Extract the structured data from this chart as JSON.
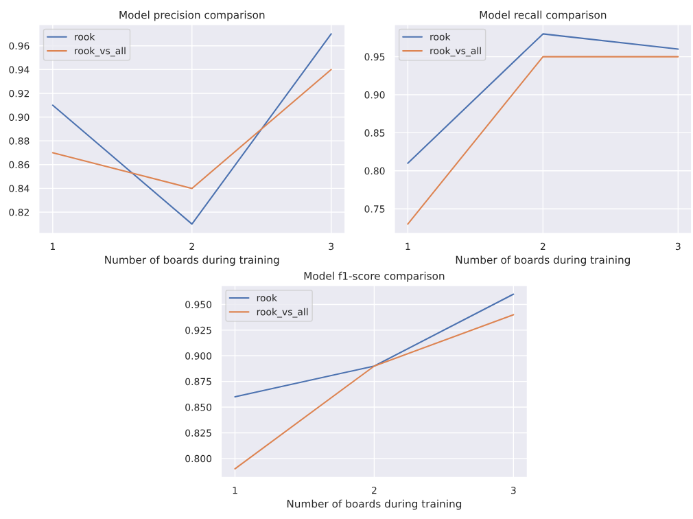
{
  "chart_data": [
    {
      "type": "line",
      "title": "Model precision comparison",
      "xlabel": "Number of boards during training",
      "x": [
        1,
        2,
        3
      ],
      "xlim": [
        0.9,
        3.1
      ],
      "xticks": [
        1,
        2,
        3
      ],
      "ylim": [
        0.802,
        0.978
      ],
      "yticks": [
        0.82,
        0.84,
        0.86,
        0.88,
        {
          "value": 0.9,
          "label": "0.90"
        },
        0.92,
        0.94,
        0.96
      ],
      "grid": true,
      "legend": "top left",
      "series": [
        {
          "name": "rook",
          "color": "#4c72b0",
          "values": [
            0.91,
            0.81,
            0.97
          ]
        },
        {
          "name": "rook_vs_all",
          "color": "#dd8452",
          "values": [
            0.87,
            0.84,
            0.94
          ]
        }
      ]
    },
    {
      "type": "line",
      "title": "Model recall comparison",
      "xlabel": "Number of boards during training",
      "x": [
        1,
        2,
        3
      ],
      "xlim": [
        0.9,
        3.1
      ],
      "xticks": [
        1,
        2,
        3
      ],
      "ylim": [
        0.7175,
        0.9925
      ],
      "yticks": [
        0.75,
        {
          "value": 0.8,
          "label": "0.80"
        },
        0.85,
        {
          "value": 0.9,
          "label": "0.90"
        },
        0.95
      ],
      "grid": true,
      "legend": "top left",
      "series": [
        {
          "name": "rook",
          "color": "#4c72b0",
          "values": [
            0.81,
            0.98,
            0.96
          ]
        },
        {
          "name": "rook_vs_all",
          "color": "#dd8452",
          "values": [
            0.73,
            0.95,
            0.95
          ]
        }
      ]
    },
    {
      "type": "line",
      "title": "Model f1-score comparison",
      "xlabel": "Number of boards during training",
      "x": [
        1,
        2,
        3
      ],
      "xlim": [
        0.9,
        3.1
      ],
      "xticks": [
        1,
        2,
        3
      ],
      "ylim": [
        0.7815,
        0.9685
      ],
      "yticks": [
        {
          "value": 0.8,
          "label": "0.800"
        },
        {
          "value": 0.825,
          "label": "0.825"
        },
        {
          "value": 0.85,
          "label": "0.850"
        },
        {
          "value": 0.875,
          "label": "0.875"
        },
        {
          "value": 0.9,
          "label": "0.900"
        },
        {
          "value": 0.925,
          "label": "0.925"
        },
        {
          "value": 0.95,
          "label": "0.950"
        }
      ],
      "grid": true,
      "legend": "top left",
      "series": [
        {
          "name": "rook",
          "color": "#4c72b0",
          "values": [
            0.86,
            0.89,
            0.96
          ]
        },
        {
          "name": "rook_vs_all",
          "color": "#dd8452",
          "values": [
            0.79,
            0.89,
            0.94
          ]
        }
      ]
    }
  ]
}
